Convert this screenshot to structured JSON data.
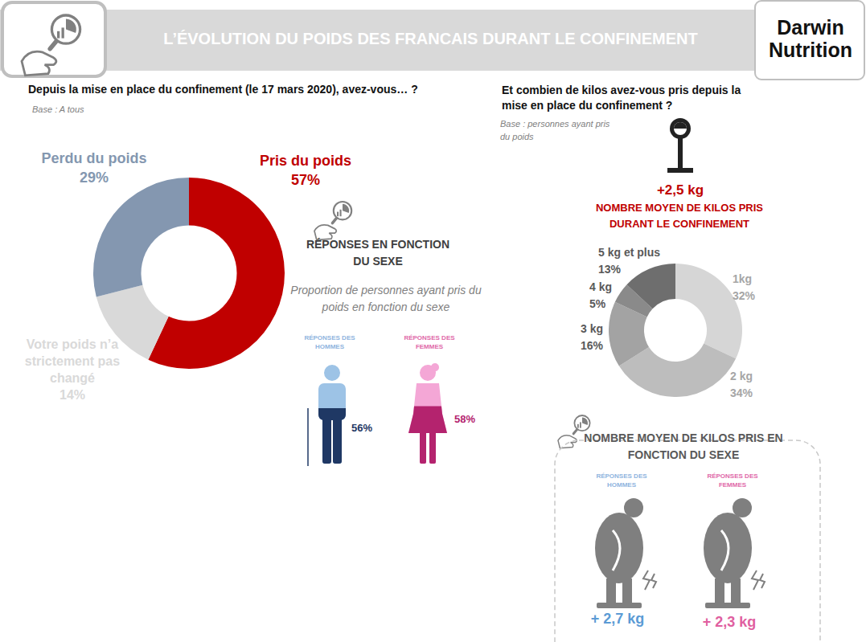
{
  "header": {
    "title": "L’ÉVOLUTION DU POIDS DES FRANCAIS DURANT LE CONFINEMENT",
    "logo": "Darwin Nutrition"
  },
  "chart_data": [
    {
      "type": "donut",
      "title": "Depuis la mise en place du confinement (le 17 mars 2020), avez-vous… ?",
      "subtitle": "Base : A tous",
      "categories": [
        "Pris du poids",
        "Votre poids n’a strictement pas changé",
        "Perdu du poids"
      ],
      "values": [
        57,
        14,
        29
      ],
      "value_labels": [
        "57%",
        "14%",
        "29%"
      ],
      "colors": [
        "#c00000",
        "#d9d9d9",
        "#8497b0"
      ],
      "data_labels": true
    },
    {
      "type": "donut",
      "title": "Et combien de kilos avez-vous pris depuis la mise en place du confinement ?",
      "subtitle": "Base : personnes ayant pris du poids",
      "categories": [
        "1kg",
        "2 kg",
        "3 kg",
        "4 kg",
        "5 kg et plus"
      ],
      "values": [
        32,
        34,
        16,
        5,
        13
      ],
      "value_labels": [
        "32%",
        "34%",
        "16%",
        "5%",
        "13%"
      ],
      "colors": [
        "#d6d6d6",
        "#bdbdbd",
        "#a3a3a3",
        "#8a8a8a",
        "#6e6e6e"
      ],
      "data_labels": true
    }
  ],
  "sex_share": {
    "title": "RÉPONSES EN FONCTION DU SEXE",
    "subtitle": "Proportion de personnes ayant pris du poids en fonction du sexe",
    "series": [
      {
        "name": "RÉPONSES DES HOMMES",
        "value": 56,
        "value_label": "56%"
      },
      {
        "name": "RÉPONSES DES FEMMES",
        "value": 58,
        "value_label": "58%"
      }
    ]
  },
  "average_gain": {
    "value_label": "+2,5 kg",
    "title": "NOMBRE MOYEN DE KILOS PRIS DURANT LE CONFINEMENT"
  },
  "average_gain_by_sex": {
    "title": "NOMBRE MOYEN DE KILOS PRIS EN FONCTION DU SEXE",
    "series": [
      {
        "name": "RÉPONSES DES HOMMES",
        "value_label": "+ 2,7 kg"
      },
      {
        "name": "RÉPONSES DES FEMMES",
        "value_label": "+ 2,3 kg"
      }
    ]
  }
}
